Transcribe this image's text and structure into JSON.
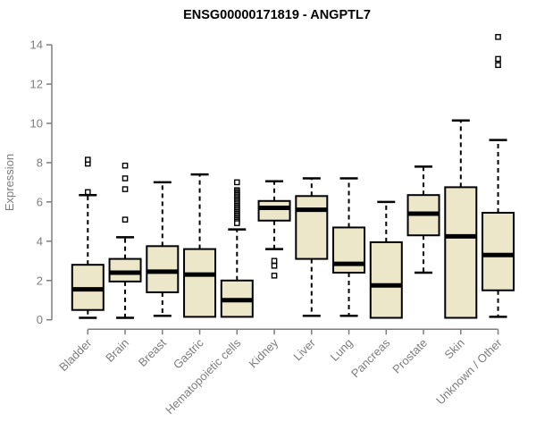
{
  "chart_data": {
    "type": "boxplot",
    "title": "ENSG00000171819 - ANGPTL7",
    "xlabel": "",
    "ylabel": "Expression",
    "ylim": [
      0,
      14
    ],
    "yticks": [
      0,
      2,
      4,
      6,
      8,
      10,
      12,
      14
    ],
    "grid": false,
    "legend": "none",
    "categories": [
      "Bladder",
      "Brain",
      "Breast",
      "Gastric",
      "Hematopoietic cells",
      "Kidney",
      "Liver",
      "Lung",
      "Pancreas",
      "Prostate",
      "Skin",
      "Unknown / Other"
    ],
    "series": [
      {
        "name": "Bladder",
        "whisker_low": 0.1,
        "q1": 0.5,
        "median": 1.55,
        "q3": 2.8,
        "whisker_high": 6.35,
        "outliers": [
          6.5,
          7.95,
          8.15
        ]
      },
      {
        "name": "Brain",
        "whisker_low": 0.1,
        "q1": 1.95,
        "median": 2.4,
        "q3": 3.1,
        "whisker_high": 4.2,
        "outliers": [
          5.1,
          6.65,
          7.2,
          7.85
        ]
      },
      {
        "name": "Breast",
        "whisker_low": 0.2,
        "q1": 1.4,
        "median": 2.45,
        "q3": 3.75,
        "whisker_high": 7.0,
        "outliers": []
      },
      {
        "name": "Gastric",
        "whisker_low": 0.15,
        "q1": 0.15,
        "median": 2.3,
        "q3": 3.6,
        "whisker_high": 7.4,
        "outliers": []
      },
      {
        "name": "Hematopoietic cells",
        "whisker_low": 0.15,
        "q1": 0.15,
        "median": 1.0,
        "q3": 2.0,
        "whisker_high": 4.6,
        "outliers": [
          7.0,
          6.6,
          6.52,
          6.44,
          6.36,
          6.28,
          6.2,
          6.12,
          6.04,
          5.96,
          5.88,
          5.8,
          5.72,
          5.64,
          5.56,
          5.48,
          5.4,
          5.32,
          5.24,
          5.16,
          5.08,
          5.0,
          4.92
        ]
      },
      {
        "name": "Kidney",
        "whisker_low": 3.6,
        "q1": 5.05,
        "median": 5.7,
        "q3": 6.05,
        "whisker_high": 7.05,
        "outliers": [
          3.0,
          2.75,
          2.25
        ]
      },
      {
        "name": "Liver",
        "whisker_low": 0.2,
        "q1": 3.1,
        "median": 5.6,
        "q3": 6.3,
        "whisker_high": 7.2,
        "outliers": []
      },
      {
        "name": "Lung",
        "whisker_low": 0.2,
        "q1": 2.4,
        "median": 2.85,
        "q3": 4.7,
        "whisker_high": 7.2,
        "outliers": []
      },
      {
        "name": "Pancreas",
        "whisker_low": 0.1,
        "q1": 0.1,
        "median": 1.75,
        "q3": 3.95,
        "whisker_high": 6.0,
        "outliers": []
      },
      {
        "name": "Prostate",
        "whisker_low": 2.4,
        "q1": 4.3,
        "median": 5.4,
        "q3": 6.35,
        "whisker_high": 7.8,
        "outliers": []
      },
      {
        "name": "Skin",
        "whisker_low": 0.1,
        "q1": 0.1,
        "median": 4.25,
        "q3": 6.75,
        "whisker_high": 10.15,
        "outliers": []
      },
      {
        "name": "Unknown / Other",
        "whisker_low": 0.15,
        "q1": 1.5,
        "median": 3.3,
        "q3": 5.45,
        "whisker_high": 9.15,
        "outliers": [
          12.97,
          13.28,
          14.4
        ]
      }
    ],
    "colors": {
      "box_fill": "#EDE7C9",
      "box_border": "#000000",
      "median": "#000000",
      "whisker": "#000000",
      "outlier_fill": "#ffffff",
      "axis": "#7D7D7D",
      "tick_label": "#7D7D7D",
      "title": "#000000"
    }
  }
}
